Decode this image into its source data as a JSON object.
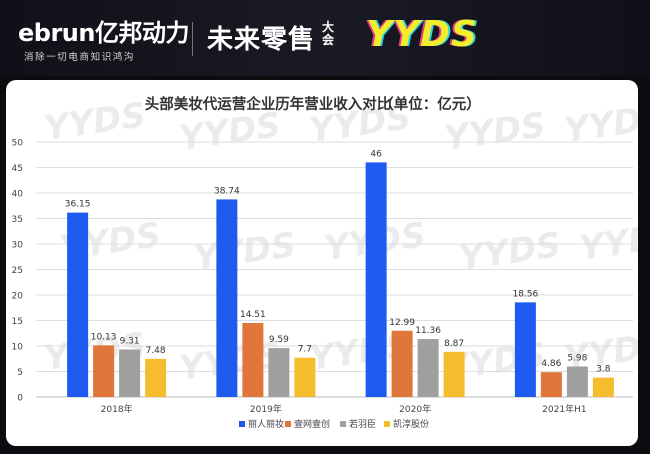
{
  "header": {
    "brand": "ebrun亿邦动力",
    "tagline": "消除一切电商知识鸿沟",
    "event_name": "未来零售",
    "event_suffix": "大会",
    "event_logo": "YYDS"
  },
  "colors": {
    "series": [
      "#1f5bf0",
      "#e1763a",
      "#9f9f9f",
      "#f5bd2e"
    ]
  },
  "chart_data": {
    "type": "bar",
    "title": "头部美妆代运营企业历年营业收入对比",
    "unit": "（单位：亿元）",
    "categories": [
      "2018年",
      "2019年",
      "2020年",
      "2021年H1"
    ],
    "series": [
      {
        "name": "丽人丽妆",
        "values": [
          36.15,
          38.74,
          46,
          18.56
        ],
        "labels": [
          "36.15",
          "38.74",
          "46",
          "18.56"
        ]
      },
      {
        "name": "壹网壹创",
        "values": [
          10.13,
          14.51,
          12.99,
          4.86
        ],
        "labels": [
          "10.13",
          "14.51",
          "12.99",
          "4.86"
        ]
      },
      {
        "name": "若羽臣",
        "values": [
          9.31,
          9.59,
          11.36,
          5.98
        ],
        "labels": [
          "9.31",
          "9.59",
          "11.36",
          "5.98"
        ]
      },
      {
        "name": "凯淳股份",
        "values": [
          7.48,
          7.7,
          8.87,
          3.8
        ],
        "labels": [
          "7.48",
          "7.7",
          "8.87",
          "3.8"
        ]
      }
    ],
    "yticks": [
      "0",
      "5",
      "10",
      "15",
      "20",
      "25",
      "30",
      "35",
      "40",
      "45",
      "50"
    ],
    "ylim": [
      0,
      50
    ],
    "grid": true,
    "legend": "bottom"
  }
}
